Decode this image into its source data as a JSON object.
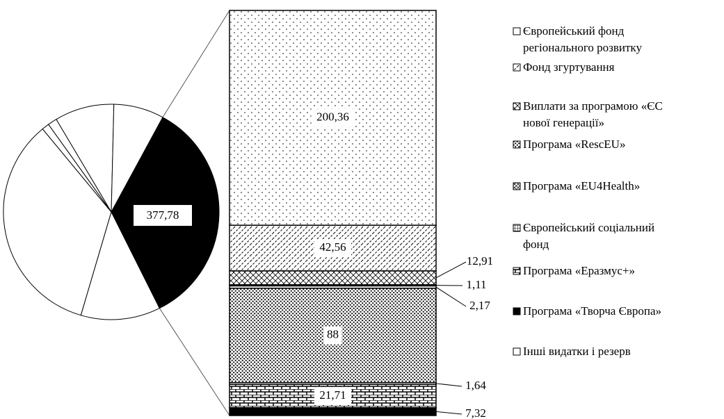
{
  "chart_data": {
    "type": "bar-of-pie",
    "pie": {
      "values": [
        377.78,
        130,
        375,
        12,
        15,
        97,
        82
      ],
      "value_labels": [
        "377,78"
      ],
      "colors": [
        "#000000",
        "#ffffff",
        "#ffffff",
        "#ffffff",
        "#ffffff",
        "#ffffff",
        "#ffffff"
      ]
    },
    "bar": {
      "values": [
        200.36,
        42.56,
        12.91,
        1.11,
        2.17,
        88,
        1.64,
        21.71,
        7.32
      ],
      "value_labels": [
        "200,36",
        "42,56",
        "12,91",
        "1,11",
        "2,17",
        "88",
        "1,64",
        "21,71",
        "7,32"
      ],
      "patterns": [
        "dots",
        "diag",
        "cross",
        "white",
        "white",
        "dense",
        "white",
        "brick",
        "black"
      ]
    },
    "legend": [
      {
        "name": [
          "Європейський фонд",
          "регіонального розвитку"
        ],
        "pattern": "white"
      },
      {
        "name": [
          "Фонд згуртування"
        ],
        "pattern": "diag"
      },
      {
        "name": [
          "Виплати за програмою «ЄС",
          "нової генерації»"
        ],
        "pattern": "cross"
      },
      {
        "name": [
          "Програма «RescEU»"
        ],
        "pattern": "dense"
      },
      {
        "name": [
          "Програма «EU4Health»"
        ],
        "pattern": "xbox"
      },
      {
        "name": [
          "Європейський соціальний",
          "фонд"
        ],
        "pattern": "grid"
      },
      {
        "name": [
          "Програма «Еразмус+»"
        ],
        "pattern": "brick"
      },
      {
        "name": [
          "Програма «Творча Європа»"
        ],
        "pattern": "black"
      },
      {
        "name": [
          "Інші видатки і резерв"
        ],
        "pattern": "white"
      }
    ]
  }
}
